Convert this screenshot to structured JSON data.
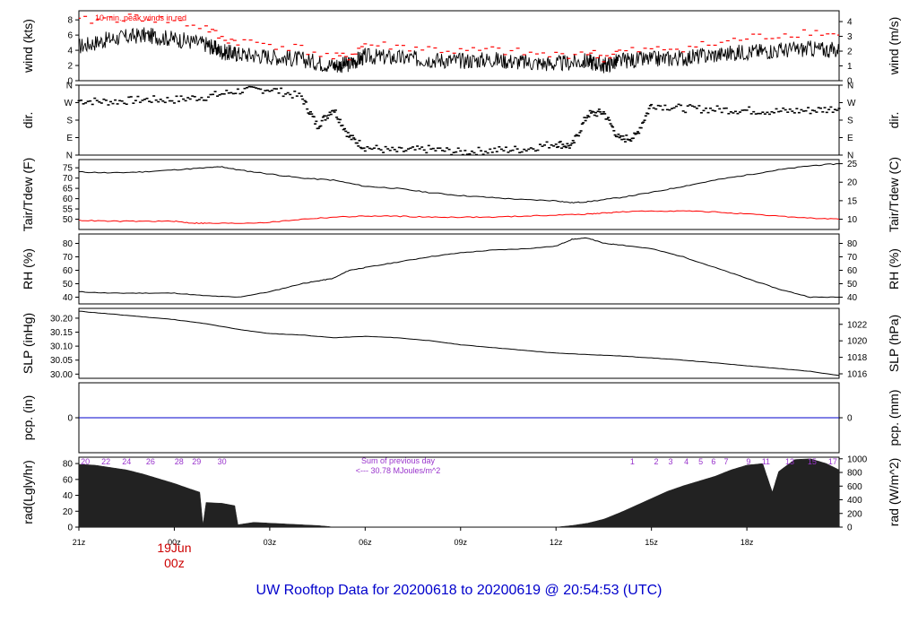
{
  "title": "UW Rooftop Data for 20200618  to  20200619 @ 20:54:53  (UTC)",
  "colors": {
    "frame": "#000000",
    "peak": "#ff0000",
    "dew": "#ff0000",
    "pcp": "#0000cc",
    "annot": "#9933cc",
    "date": "#cc0000",
    "title": "#0000cc",
    "fill": "#222222"
  },
  "x_axis": {
    "ticks": [
      {
        "label": "21z",
        "hour": 0
      },
      {
        "label": "00z",
        "hour": 3
      },
      {
        "label": "03z",
        "hour": 6
      },
      {
        "label": "06z",
        "hour": 9
      },
      {
        "label": "09z",
        "hour": 12
      },
      {
        "label": "12z",
        "hour": 15
      },
      {
        "label": "15z",
        "hour": 18
      },
      {
        "label": "18z",
        "hour": 21
      }
    ],
    "end_hour": 23.9,
    "date_label": "19Jun",
    "date_hour_label": "00z",
    "date_hour": 3
  },
  "chart_data": [
    {
      "id": "wind",
      "type": "line",
      "ylabel_left": "wind (kts)",
      "ylabel_right": "wind (m/s)",
      "ylim": [
        0,
        9.2
      ],
      "left_ticks": [
        0,
        2,
        4,
        6,
        8
      ],
      "right_ticks": [
        {
          "label": "0",
          "v": 0
        },
        {
          "label": "1",
          "v": 1.944
        },
        {
          "label": "2",
          "v": 3.888
        },
        {
          "label": "3",
          "v": 5.832
        },
        {
          "label": "4",
          "v": 7.776
        }
      ],
      "annotation": "10 min. peak winds in red",
      "series": [
        {
          "values_x": [
            0,
            1,
            2,
            3,
            4,
            4.5,
            5,
            6,
            7,
            8,
            8.5,
            9,
            10,
            11,
            12,
            13,
            14,
            15,
            16,
            16.5,
            17,
            18,
            19,
            20,
            21,
            22,
            23,
            23.9
          ],
          "values_y": [
            4.5,
            5.5,
            6.0,
            5.5,
            4.8,
            3.8,
            3.5,
            3.2,
            2.8,
            2.0,
            2.2,
            3.2,
            3.0,
            2.8,
            2.6,
            2.8,
            2.4,
            2.2,
            2.6,
            2.0,
            2.6,
            2.8,
            3.0,
            3.4,
            3.8,
            4.0,
            4.2,
            4.0
          ]
        },
        {
          "values_x": [
            0,
            1,
            2,
            3,
            4,
            4.5,
            5,
            6,
            7,
            8,
            8.5,
            9,
            10,
            11,
            12,
            13,
            14,
            15,
            16,
            16.5,
            17,
            18,
            19,
            20,
            21,
            22,
            23,
            23.9
          ],
          "values_y": [
            7.8,
            8.2,
            8.3,
            7.8,
            7.0,
            5.5,
            5.2,
            4.8,
            4.2,
            3.0,
            3.2,
            4.8,
            4.5,
            4.2,
            3.8,
            4.0,
            3.6,
            3.3,
            3.8,
            3.0,
            3.8,
            4.0,
            4.4,
            4.8,
            5.6,
            6.0,
            6.5,
            6.0
          ]
        }
      ]
    },
    {
      "id": "dir",
      "type": "scatter",
      "ylabel_left": "dir.",
      "ylabel_right": "dir.",
      "ylim": [
        0,
        360
      ],
      "left_ticks": [
        {
          "label": "N",
          "v": 0
        },
        {
          "label": "E",
          "v": 90
        },
        {
          "label": "S",
          "v": 180
        },
        {
          "label": "W",
          "v": 270
        },
        {
          "label": "N",
          "v": 360
        }
      ],
      "right_ticks": [
        {
          "label": "N",
          "v": 0
        },
        {
          "label": "E",
          "v": 90
        },
        {
          "label": "S",
          "v": 180
        },
        {
          "label": "W",
          "v": 270
        },
        {
          "label": "N",
          "v": 360
        }
      ],
      "series": [
        {
          "values_x": [
            0,
            1,
            2,
            3,
            4,
            5,
            6,
            7,
            7.5,
            8,
            8.5,
            9,
            10,
            11,
            12,
            13,
            14,
            15,
            15.5,
            16,
            16.5,
            17,
            17.5,
            18,
            19,
            20,
            21,
            22,
            23,
            23.9
          ],
          "values_y": [
            280,
            275,
            285,
            285,
            300,
            330,
            340,
            300,
            150,
            240,
            95,
            40,
            20,
            30,
            15,
            25,
            30,
            60,
            45,
            210,
            220,
            80,
            95,
            260,
            240,
            235,
            230,
            225,
            230,
            240
          ]
        }
      ]
    },
    {
      "id": "temp",
      "type": "line",
      "ylabel_left": "Tair/Tdew (F)",
      "ylabel_right": "Tair/Tdew (C)",
      "ylim": [
        45,
        79
      ],
      "left_ticks": [
        50,
        55,
        60,
        65,
        70,
        75
      ],
      "right_ticks": [
        {
          "label": "10",
          "v": 50
        },
        {
          "label": "15",
          "v": 59
        },
        {
          "label": "20",
          "v": 68
        },
        {
          "label": "25",
          "v": 77
        }
      ],
      "series": [
        {
          "values_x": [
            0,
            1,
            2,
            3,
            4,
            4.5,
            5,
            6,
            7,
            8,
            9,
            10,
            11,
            12,
            13,
            14,
            15,
            15.5,
            16,
            17,
            18,
            19,
            20,
            21,
            22,
            23,
            23.9
          ],
          "values_y": [
            73,
            72.5,
            73,
            74,
            75,
            75.5,
            74,
            72,
            70,
            69,
            66,
            65,
            63,
            61.5,
            60.5,
            59.5,
            59,
            58,
            58.5,
            60.5,
            63,
            66,
            69,
            71.5,
            74,
            76,
            77
          ]
        },
        {
          "values_x": [
            0,
            1,
            2,
            3,
            3.5,
            4,
            5,
            6,
            7,
            8,
            9,
            10,
            11,
            12,
            13,
            14,
            15,
            16,
            16.5,
            17,
            18,
            19,
            20,
            21,
            22,
            23,
            23.9
          ],
          "values_y": [
            49.5,
            49,
            49,
            49,
            48.2,
            48,
            48,
            48.5,
            50,
            51,
            51.5,
            51.5,
            51,
            51,
            51,
            51.5,
            52,
            52.5,
            53,
            53.5,
            54,
            54,
            53.5,
            52.5,
            51.5,
            50.5,
            50
          ]
        }
      ]
    },
    {
      "id": "rh",
      "type": "line",
      "ylabel_left": "RH (%)",
      "ylabel_right": "RH (%)",
      "ylim": [
        35,
        87
      ],
      "left_ticks": [
        40,
        50,
        60,
        70,
        80
      ],
      "right_ticks": [
        {
          "label": "40",
          "v": 40
        },
        {
          "label": "50",
          "v": 50
        },
        {
          "label": "60",
          "v": 60
        },
        {
          "label": "70",
          "v": 70
        },
        {
          "label": "80",
          "v": 80
        }
      ],
      "series": [
        {
          "values_x": [
            0,
            1,
            2,
            3,
            4,
            5,
            6,
            7,
            7.5,
            8,
            8.5,
            9,
            10,
            11,
            12,
            13,
            14,
            15,
            15.5,
            16,
            16.5,
            17,
            18,
            19,
            20,
            21,
            22,
            23,
            23.9
          ],
          "values_y": [
            44,
            43,
            43,
            43,
            41,
            40,
            44,
            50,
            52,
            54,
            60,
            62,
            66,
            70,
            73,
            75,
            76,
            78,
            83,
            84,
            80,
            79,
            76,
            70,
            62,
            54,
            46,
            40,
            40
          ]
        }
      ]
    },
    {
      "id": "slp",
      "type": "line",
      "ylabel_left": "SLP (inHg)",
      "ylabel_right": "SLP (hPa)",
      "ylim": [
        29.985,
        30.235
      ],
      "left_ticks": [
        {
          "label": "30.00",
          "v": 30.0
        },
        {
          "label": "30.05",
          "v": 30.05
        },
        {
          "label": "30.10",
          "v": 30.1
        },
        {
          "label": "30.15",
          "v": 30.15
        },
        {
          "label": "30.20",
          "v": 30.2
        }
      ],
      "right_ticks": [
        {
          "label": "1016",
          "v": 30.001
        },
        {
          "label": "1018",
          "v": 30.06
        },
        {
          "label": "1020",
          "v": 30.119
        },
        {
          "label": "1022",
          "v": 30.178
        }
      ],
      "series": [
        {
          "values_x": [
            0,
            1,
            2,
            3,
            4,
            5,
            6,
            7,
            8,
            9,
            10,
            11,
            12,
            13,
            14,
            15,
            16,
            17,
            18,
            19,
            20,
            21,
            22,
            23,
            23.9
          ],
          "values_y": [
            30.225,
            30.215,
            30.205,
            30.195,
            30.18,
            30.16,
            30.145,
            30.14,
            30.13,
            30.135,
            30.13,
            30.12,
            30.105,
            30.095,
            30.085,
            30.075,
            30.07,
            30.065,
            30.058,
            30.05,
            30.04,
            30.03,
            30.02,
            30.01,
            29.995
          ]
        }
      ]
    },
    {
      "id": "pcp",
      "type": "line",
      "ylabel_left": "pcp. (in)",
      "ylabel_right": "pcp. (mm)",
      "ylim": [
        -1,
        1
      ],
      "left_ticks": [
        {
          "label": "0",
          "v": 0
        }
      ],
      "right_ticks": [
        {
          "label": "0",
          "v": 0
        }
      ],
      "series": [
        {
          "values_x": [
            0,
            23.9
          ],
          "values_y": [
            0,
            0
          ]
        }
      ]
    },
    {
      "id": "rad",
      "type": "area",
      "ylabel_left": "rad(Lgly/hr)",
      "ylabel_right": "rad (W/m^2)",
      "ylim": [
        0,
        88
      ],
      "left_ticks": [
        0,
        20,
        40,
        60,
        80
      ],
      "right_ticks": [
        {
          "label": "0",
          "v": 0
        },
        {
          "label": "200",
          "v": 17.2
        },
        {
          "label": "400",
          "v": 34.4
        },
        {
          "label": "600",
          "v": 51.6
        },
        {
          "label": "800",
          "v": 68.8
        },
        {
          "label": "1000",
          "v": 86
        }
      ],
      "annotations": [
        "Sum of previous day",
        "<--- 30.78 MJoules/m^2"
      ],
      "day_labels_prev": [
        {
          "label": "20",
          "hour": 0.2
        },
        {
          "label": "22",
          "hour": 0.85
        },
        {
          "label": "24",
          "hour": 1.5
        },
        {
          "label": "26",
          "hour": 2.25
        },
        {
          "label": "28",
          "hour": 3.15
        },
        {
          "label": "29",
          "hour": 3.7
        },
        {
          "label": "30",
          "hour": 4.5
        }
      ],
      "day_labels_next": [
        {
          "label": "1",
          "hour": 17.4
        },
        {
          "label": "2",
          "hour": 18.15
        },
        {
          "label": "3",
          "hour": 18.6
        },
        {
          "label": "4",
          "hour": 19.1
        },
        {
          "label": "5",
          "hour": 19.55
        },
        {
          "label": "6",
          "hour": 19.95
        },
        {
          "label": "7",
          "hour": 20.35
        },
        {
          "label": "9",
          "hour": 21.05
        },
        {
          "label": "11",
          "hour": 21.6
        },
        {
          "label": "13",
          "hour": 22.35
        },
        {
          "label": "15",
          "hour": 23.05
        },
        {
          "label": "17",
          "hour": 23.7
        }
      ],
      "series": [
        {
          "values_x": [
            0,
            0.5,
            1,
            1.5,
            2,
            2.5,
            3,
            3.5,
            3.8,
            3.9,
            4.0,
            4.5,
            4.9,
            5.0,
            5.5,
            6.0,
            6.5,
            7.0,
            7.5,
            7.8,
            8.0,
            15.0,
            15.5,
            16.0,
            16.5,
            17.0,
            17.5,
            18.0,
            18.5,
            19.0,
            19.5,
            20.0,
            20.5,
            21.0,
            21.5,
            21.8,
            22.0,
            22.5,
            23.0,
            23.5,
            23.9
          ],
          "values_y": [
            79,
            78,
            75,
            72,
            67,
            61,
            55,
            48,
            44,
            3,
            31,
            30,
            27,
            3,
            6,
            5,
            4,
            3,
            2,
            1,
            0,
            0,
            2,
            5,
            10,
            18,
            27,
            36,
            45,
            52,
            58,
            64,
            72,
            78,
            80,
            44,
            70,
            85,
            86,
            80,
            72
          ]
        }
      ]
    }
  ]
}
